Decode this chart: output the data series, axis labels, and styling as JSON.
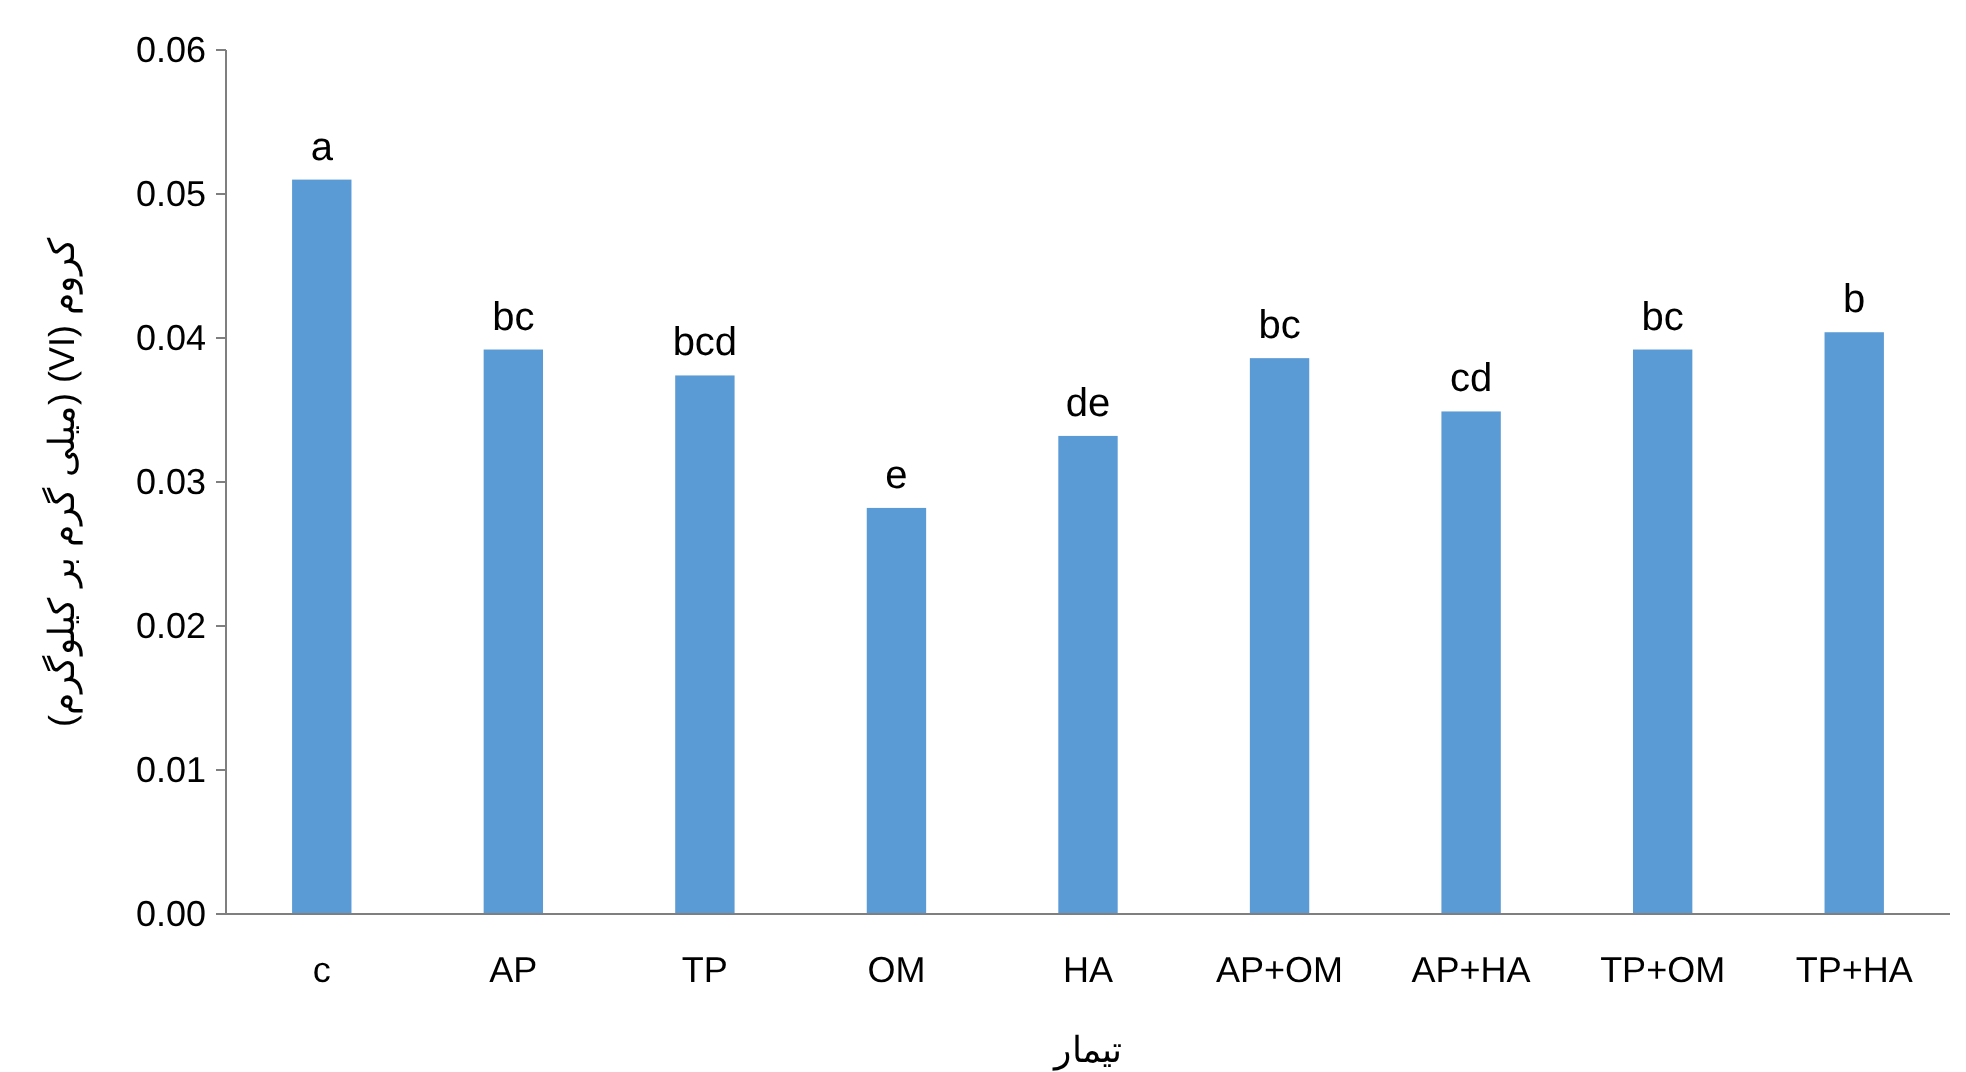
{
  "chart_data": {
    "type": "bar",
    "xlabel": "تیمار",
    "ylabel": "کروم (VI) (میلی گرم بر کیلوگرم)",
    "categories": [
      "c",
      "AP",
      "TP",
      "OM",
      "HA",
      "AP+OM",
      "AP+HA",
      "TP+OM",
      "TP+HA"
    ],
    "values": [
      0.051,
      0.0392,
      0.0374,
      0.0282,
      0.0332,
      0.0386,
      0.0349,
      0.0392,
      0.0404
    ],
    "value_labels": [
      "a",
      "bc",
      "bcd",
      "e",
      "de",
      "bc",
      "cd",
      "bc",
      "b"
    ],
    "color": "#5b9bd5",
    "ylim": [
      0,
      0.06
    ],
    "yticks": [
      {
        "value": 0,
        "label": "0.00"
      },
      {
        "value": 0.01,
        "label": "0.01"
      },
      {
        "value": 0.02,
        "label": "0.02"
      },
      {
        "value": 0.03,
        "label": "0.03"
      },
      {
        "value": 0.04,
        "label": "0.04"
      },
      {
        "value": 0.05,
        "label": "0.05"
      },
      {
        "value": 0.06,
        "label": "0.06"
      }
    ],
    "grid": false
  }
}
